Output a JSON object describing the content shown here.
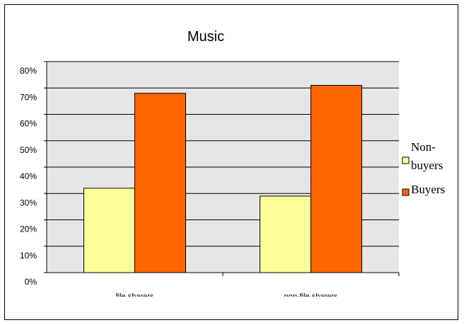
{
  "chart_data": {
    "type": "bar",
    "title": "Music",
    "xlabel": "",
    "ylabel": "",
    "categories": [
      "file sharers",
      "non-file sharers"
    ],
    "series": [
      {
        "name": "Non-buyers",
        "values": [
          32,
          29
        ],
        "color": "#FFFF99"
      },
      {
        "name": "Buyers",
        "values": [
          68,
          71
        ],
        "color": "#FF6600"
      }
    ],
    "ylim": [
      0,
      80
    ],
    "y_ticks": [
      "0%",
      "10%",
      "20%",
      "30%",
      "40%",
      "50%",
      "60%",
      "70%",
      "80%"
    ],
    "grid": true,
    "plot_background": "#E6E6E6",
    "legend_position": "right",
    "legend_labels": [
      "Non-\nbuyers",
      "Buyers"
    ]
  }
}
